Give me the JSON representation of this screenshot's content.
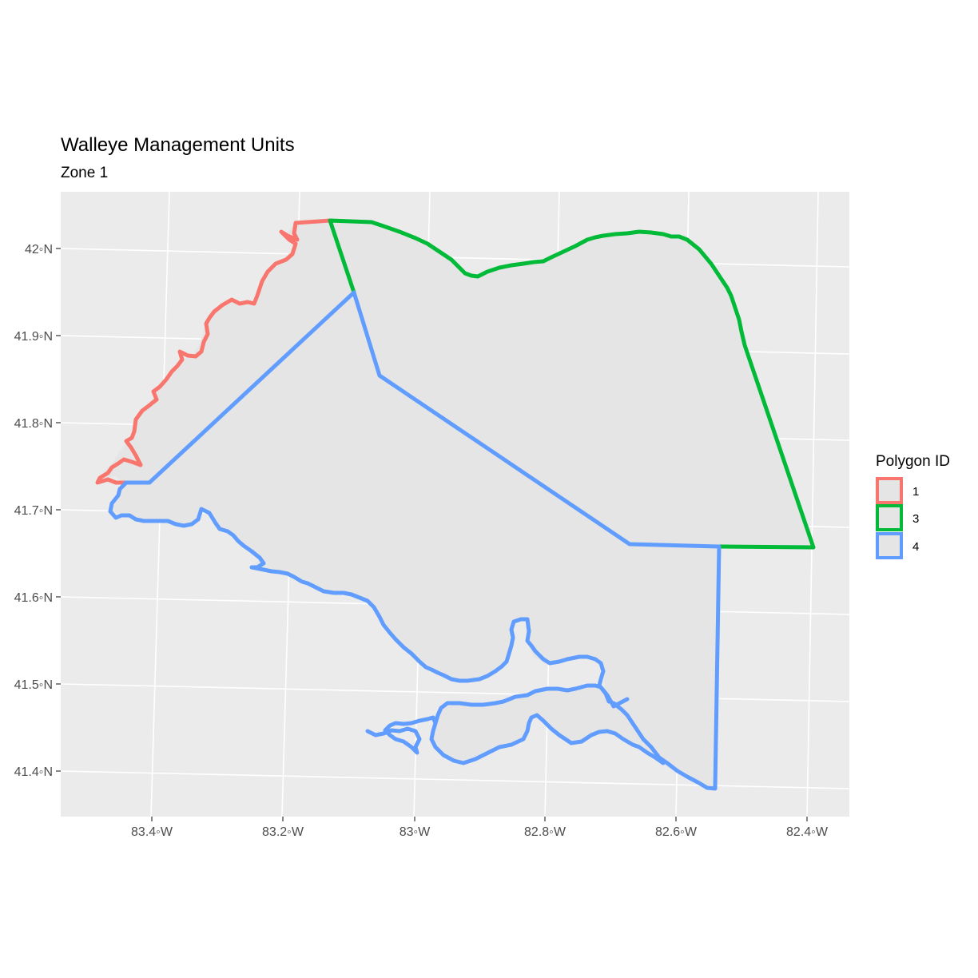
{
  "title": "Walleye Management Units",
  "subtitle": "Zone 1",
  "colors": {
    "panel_background": "#ebebeb",
    "grid": "#ffffff",
    "polygon_fill": "#e5e5e5",
    "polygon_1": "#f8766d",
    "polygon_3": "#00ba38",
    "polygon_4": "#619cff"
  },
  "axes": {
    "x_ticks": [
      "83.4◦W",
      "83.2◦W",
      "83◦W",
      "82.8◦W",
      "82.6◦W",
      "82.4◦W"
    ],
    "y_ticks": [
      "42◦N",
      "41.9◦N",
      "41.8◦N",
      "41.7◦N",
      "41.6◦N",
      "41.5◦N",
      "41.4◦N"
    ]
  },
  "legend": {
    "title": "Polygon ID",
    "position": "right",
    "items": [
      {
        "label": "1",
        "color": "#f8766d"
      },
      {
        "label": "3",
        "color": "#00ba38"
      },
      {
        "label": "4",
        "color": "#619cff"
      }
    ]
  }
}
